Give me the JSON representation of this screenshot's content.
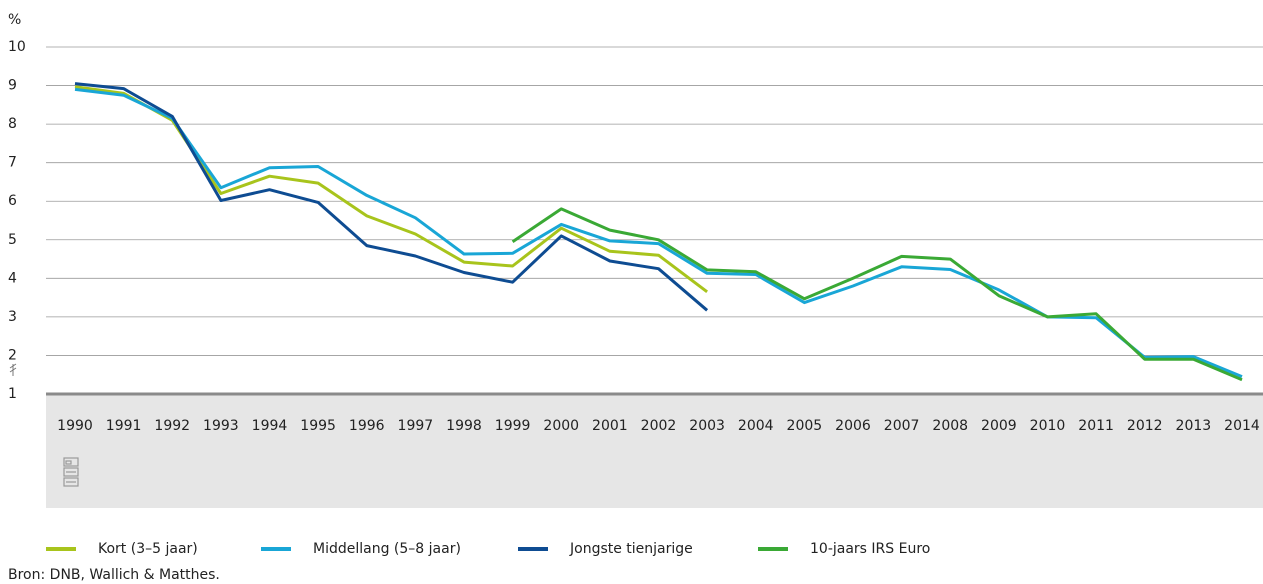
{
  "chart_data": {
    "type": "line",
    "y_unit_label": "%",
    "categories": [
      "1990",
      "1991",
      "1992",
      "1993",
      "1994",
      "1995",
      "1996",
      "1997",
      "1998",
      "1999",
      "2000",
      "2001",
      "2002",
      "2003",
      "2004",
      "2005",
      "2006",
      "2007",
      "2008",
      "2009",
      "2010",
      "2011",
      "2012",
      "2013",
      "2014"
    ],
    "series": [
      {
        "name": "Kort (3–5 jaar)",
        "color": "#a8c41c",
        "values": [
          8.97,
          8.8,
          8.1,
          6.2,
          6.65,
          6.47,
          5.62,
          5.15,
          4.42,
          4.32,
          5.3,
          4.7,
          4.6,
          3.65,
          null,
          null,
          null,
          null,
          null,
          null,
          null,
          null,
          null,
          null,
          null
        ]
      },
      {
        "name": "Middellang (5–8 jaar)",
        "color": "#19a6d6",
        "values": [
          8.9,
          8.75,
          8.15,
          6.35,
          6.87,
          6.9,
          6.15,
          5.57,
          4.63,
          4.65,
          5.4,
          4.97,
          4.9,
          4.13,
          4.1,
          3.37,
          3.8,
          4.3,
          4.23,
          3.7,
          3.0,
          2.98,
          1.95,
          1.97,
          1.45
        ]
      },
      {
        "name": "Jongste tienjarige",
        "color": "#0e4c92",
        "values": [
          9.05,
          8.92,
          8.2,
          6.02,
          6.3,
          5.97,
          4.85,
          4.58,
          4.15,
          3.9,
          5.1,
          4.45,
          4.25,
          3.17,
          null,
          null,
          null,
          null,
          null,
          null,
          null,
          null,
          null,
          null,
          null
        ]
      },
      {
        "name": "10-jaars IRS Euro",
        "color": "#3aa935",
        "values": [
          null,
          null,
          null,
          null,
          null,
          null,
          null,
          null,
          null,
          4.95,
          5.8,
          5.25,
          5.0,
          4.22,
          4.17,
          3.47,
          4.0,
          4.57,
          4.5,
          3.55,
          3.0,
          3.08,
          1.9,
          1.9,
          1.37
        ]
      }
    ],
    "ylim": [
      1,
      10
    ],
    "yticks": [
      1,
      2,
      3,
      4,
      5,
      6,
      7,
      8,
      9,
      10
    ],
    "grid": true,
    "source": "Bron: DNB, Wallich & Matthes."
  }
}
